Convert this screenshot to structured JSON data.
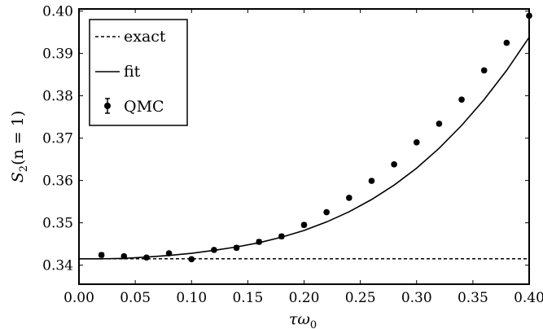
{
  "chart_data": {
    "type": "scatter",
    "xlabel": "τω",
    "xlabel_sub": "0",
    "ylabel_main": "S",
    "ylabel_sub": "2",
    "ylabel_rest": "(n = 1)",
    "xlim": [
      0.0,
      0.4
    ],
    "ylim": [
      0.3355,
      0.4005
    ],
    "xticks": [
      "0.00",
      "0.05",
      "0.10",
      "0.15",
      "0.20",
      "0.25",
      "0.30",
      "0.35",
      "0.40"
    ],
    "xtick_values": [
      0.0,
      0.05,
      0.1,
      0.15,
      0.2,
      0.25,
      0.3,
      0.35,
      0.4
    ],
    "yticks": [
      "0.34",
      "0.35",
      "0.36",
      "0.37",
      "0.38",
      "0.39",
      "0.40"
    ],
    "ytick_values": [
      0.34,
      0.35,
      0.36,
      0.37,
      0.38,
      0.39,
      0.4
    ],
    "legend_position": "top-left",
    "legend": {
      "exact": "exact",
      "fit": "fit",
      "qmc": "QMC"
    },
    "exact_value": 0.3415,
    "fit_curve": {
      "x": [
        0.0,
        0.02,
        0.04,
        0.06,
        0.08,
        0.1,
        0.12,
        0.14,
        0.16,
        0.18,
        0.2,
        0.22,
        0.24,
        0.26,
        0.28,
        0.3,
        0.32,
        0.34,
        0.36,
        0.38,
        0.4
      ],
      "y": [
        0.3415,
        0.3415,
        0.3416,
        0.3419,
        0.3423,
        0.3428,
        0.3435,
        0.3443,
        0.3453,
        0.3466,
        0.3482,
        0.3502,
        0.3526,
        0.3555,
        0.3589,
        0.3629,
        0.3676,
        0.373,
        0.3791,
        0.386,
        0.3938
      ]
    },
    "qmc": {
      "x": [
        0.02,
        0.04,
        0.06,
        0.08,
        0.1,
        0.12,
        0.14,
        0.16,
        0.18,
        0.2,
        0.22,
        0.24,
        0.26,
        0.28,
        0.3,
        0.32,
        0.34,
        0.36,
        0.38,
        0.4
      ],
      "y": [
        0.3424,
        0.3421,
        0.3418,
        0.3428,
        0.3414,
        0.3436,
        0.3441,
        0.3455,
        0.3468,
        0.3495,
        0.3525,
        0.3559,
        0.3599,
        0.3638,
        0.369,
        0.3734,
        0.3791,
        0.386,
        0.3925,
        0.3989
      ],
      "err": [
        0.0005,
        0.0004,
        0.0004,
        0.0004,
        0.0004,
        0.0004,
        0.0005,
        0.0005,
        0.0005,
        0.0005,
        0.0004,
        0.0004,
        0.0004,
        0.0004,
        0.0004,
        0.0004,
        0.0004,
        0.0004,
        0.0004,
        0.0004
      ]
    }
  }
}
